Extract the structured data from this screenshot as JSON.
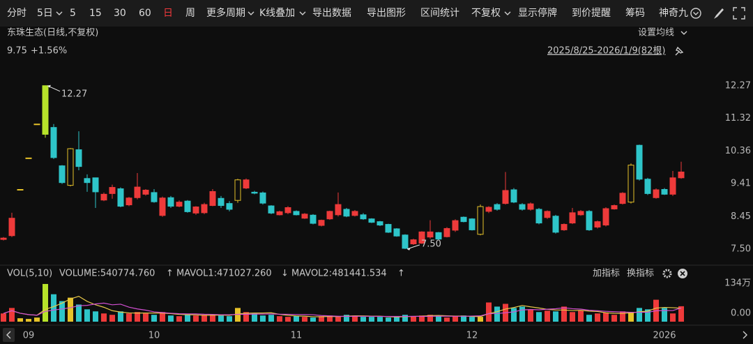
{
  "toolbar": {
    "items": [
      "分时",
      "5日",
      "5",
      "15",
      "30",
      "60",
      "日",
      "周",
      "更多周期",
      "K线叠加",
      "导出数据",
      "导出图形",
      "区间统计",
      "不复权",
      "显示停牌",
      "到价提醒",
      "筹码",
      "神奇九"
    ]
  },
  "header": {
    "title": "东珠生态(日线,不复权)",
    "ma_setting": "设置均线",
    "price": "9.75",
    "change": "+1.56%",
    "range": "2025/8/25-2026/1/9(82根)"
  },
  "chart_data": {
    "type": "candlestick",
    "categories": [
      null,
      null,
      null,
      "09",
      null,
      null,
      null,
      null,
      null,
      null,
      null,
      null,
      null,
      null,
      null,
      null,
      null,
      null,
      "10",
      null,
      null,
      null,
      null,
      null,
      null,
      null,
      null,
      null,
      null,
      null,
      null,
      null,
      null,
      null,
      null,
      "11",
      null,
      null,
      null,
      null,
      null,
      null,
      null,
      null,
      null,
      null,
      null,
      null,
      null,
      null,
      null,
      null,
      null,
      null,
      null,
      null,
      "12",
      null,
      null,
      null,
      null,
      null,
      null,
      null,
      null,
      null,
      null,
      null,
      null,
      null,
      null,
      null,
      null,
      null,
      null,
      null,
      null,
      null,
      null,
      "2026",
      null,
      null
    ],
    "open": [
      7.78,
      7.89,
      9.24,
      10.16,
      11.15,
      12.27,
      11.05,
      9.93,
      9.36,
      10.4,
      9.56,
      9.58,
      8.93,
      9.12,
      9.26,
      8.79,
      9.0,
      9.1,
      9.15,
      8.48,
      9.0,
      8.75,
      8.9,
      8.55,
      8.56,
      8.77,
      8.98,
      8.83,
      8.92,
      9.28,
      9.16,
      9.14,
      8.76,
      8.5,
      8.56,
      8.6,
      8.4,
      8.49,
      8.19,
      8.38,
      8.5,
      8.66,
      8.48,
      8.5,
      8.38,
      8.3,
      8.22,
      8.09,
      7.91,
      7.65,
      7.67,
      7.85,
      7.98,
      7.86,
      8.05,
      8.43,
      8.38,
      7.93,
      8.6,
      8.8,
      8.83,
      9.23,
      8.8,
      8.66,
      8.66,
      8.42,
      8.46,
      8.06,
      8.26,
      8.5,
      8.6,
      8.14,
      8.2,
      8.67,
      8.83,
      8.87,
      10.53,
      9.54,
      9.0,
      9.24,
      9.1,
      9.58
    ],
    "high": [
      7.85,
      8.56,
      9.24,
      10.16,
      11.15,
      12.27,
      11.15,
      9.95,
      10.45,
      10.94,
      9.68,
      9.58,
      9.15,
      9.38,
      9.3,
      9.02,
      9.72,
      9.25,
      9.25,
      9.03,
      9.05,
      8.92,
      8.93,
      8.75,
      8.85,
      9.25,
      9.05,
      8.9,
      9.55,
      9.56,
      9.2,
      9.18,
      8.78,
      8.62,
      8.75,
      8.63,
      8.55,
      8.52,
      8.36,
      8.62,
      9.15,
      8.7,
      8.64,
      8.55,
      8.4,
      8.32,
      8.24,
      8.11,
      7.93,
      7.8,
      8.02,
      8.34,
      8.0,
      8.14,
      8.37,
      8.45,
      8.4,
      8.8,
      8.75,
      8.84,
      9.75,
      9.28,
      8.84,
      8.86,
      8.7,
      8.63,
      8.5,
      8.25,
      8.7,
      8.64,
      8.64,
      8.33,
      8.72,
      8.8,
      9.16,
      10.0,
      10.55,
      9.58,
      9.27,
      9.28,
      9.78,
      10.05
    ],
    "low": [
      7.75,
      7.85,
      9.24,
      10.16,
      11.15,
      10.75,
      10.13,
      9.4,
      9.33,
      9.8,
      9.17,
      8.7,
      8.9,
      8.97,
      8.72,
      8.75,
      8.95,
      9.06,
      8.85,
      8.44,
      8.7,
      8.72,
      8.56,
      8.5,
      8.52,
      8.75,
      8.7,
      8.6,
      8.85,
      9.25,
      9.1,
      8.8,
      8.52,
      8.48,
      8.52,
      8.48,
      8.38,
      8.22,
      8.16,
      8.35,
      8.45,
      8.43,
      8.45,
      8.35,
      8.26,
      8.17,
      7.97,
      7.86,
      7.5,
      7.62,
      7.65,
      7.8,
      7.77,
      7.84,
      8.0,
      8.28,
      8.04,
      7.9,
      8.55,
      8.62,
      8.8,
      8.84,
      8.62,
      8.62,
      8.22,
      8.38,
      7.95,
      8.03,
      8.23,
      8.47,
      8.03,
      8.1,
      8.16,
      8.65,
      8.8,
      8.83,
      9.5,
      9.08,
      8.97,
      9.08,
      9.05,
      9.55
    ],
    "close": [
      7.82,
      8.4,
      9.24,
      10.16,
      11.15,
      10.85,
      10.17,
      9.44,
      10.43,
      9.91,
      9.44,
      9.17,
      9.1,
      9.3,
      8.75,
      8.99,
      9.31,
      9.22,
      8.88,
      8.99,
      8.75,
      8.87,
      8.59,
      8.73,
      8.8,
      9.18,
      8.77,
      8.66,
      9.52,
      9.52,
      9.13,
      8.84,
      8.55,
      8.59,
      8.71,
      8.5,
      8.52,
      8.25,
      8.34,
      8.6,
      8.8,
      8.46,
      8.6,
      8.38,
      8.28,
      8.2,
      7.99,
      7.88,
      7.52,
      7.77,
      8.0,
      8.0,
      7.79,
      8.1,
      8.33,
      8.3,
      8.06,
      8.74,
      8.72,
      8.66,
      9.21,
      8.87,
      8.66,
      8.82,
      8.26,
      8.6,
      7.99,
      8.22,
      8.56,
      8.6,
      8.06,
      8.3,
      8.68,
      8.77,
      9.13,
      9.95,
      9.54,
      9.12,
      9.23,
      9.1,
      9.58,
      9.75
    ],
    "colors": [
      "#ee3a3a",
      "#ee3a3a",
      "#e6c229",
      "#e6c229",
      "#e6c229",
      "#b7e32a",
      "#2ec5c9",
      "#2ec5c9",
      "#e6c229",
      "#2ec5c9",
      "#2ec5c9",
      "#2ec5c9",
      "#ee3a3a",
      "#ee3a3a",
      "#2ec5c9",
      "#ee3a3a",
      "#ee3a3a",
      "#ee3a3a",
      "#2ec5c9",
      "#ee3a3a",
      "#2ec5c9",
      "#ee3a3a",
      "#2ec5c9",
      "#ee3a3a",
      "#ee3a3a",
      "#ee3a3a",
      "#2ec5c9",
      "#2ec5c9",
      "#e6c229",
      "#ee3a3a",
      "#2ec5c9",
      "#2ec5c9",
      "#2ec5c9",
      "#ee3a3a",
      "#ee3a3a",
      "#2ec5c9",
      "#ee3a3a",
      "#2ec5c9",
      "#ee3a3a",
      "#ee3a3a",
      "#ee3a3a",
      "#2ec5c9",
      "#ee3a3a",
      "#2ec5c9",
      "#2ec5c9",
      "#2ec5c9",
      "#2ec5c9",
      "#2ec5c9",
      "#2ec5c9",
      "#ee3a3a",
      "#ee3a3a",
      "#ee3a3a",
      "#2ec5c9",
      "#ee3a3a",
      "#ee3a3a",
      "#2ec5c9",
      "#2ec5c9",
      "#e6c229",
      "#ee3a3a",
      "#2ec5c9",
      "#ee3a3a",
      "#2ec5c9",
      "#2ec5c9",
      "#ee3a3a",
      "#2ec5c9",
      "#ee3a3a",
      "#2ec5c9",
      "#ee3a3a",
      "#ee3a3a",
      "#ee3a3a",
      "#2ec5c9",
      "#ee3a3a",
      "#ee3a3a",
      "#ee3a3a",
      "#ee3a3a",
      "#e6c229",
      "#2ec5c9",
      "#2ec5c9",
      "#ee3a3a",
      "#2ec5c9",
      "#ee3a3a",
      "#ee3a3a"
    ],
    "hollow_color": "#e6c229",
    "ylim": [
      7.07,
      12.49
    ],
    "yticks": [
      12.27,
      11.32,
      10.36,
      9.41,
      8.45,
      {
        "value": 7.5,
        "label": "7.50"
      }
    ],
    "annotations": [
      {
        "value": 12.27,
        "label": "12.27"
      },
      {
        "value": 7.5,
        "label": "7.50"
      }
    ],
    "volume": {
      "legend": {
        "name": "VOL(5,10)",
        "volume": "VOLUME:540774.760",
        "arrow1": "↑",
        "mavol1": "MAVOL1:471027.260",
        "arrow2": "↓",
        "mavol2": "MAVOL2:481441.534",
        "arrow3": "↑",
        "add": "加指标",
        "switch": "换指标"
      },
      "values": [
        288000,
        480000,
        120000,
        96000,
        144000,
        1320000,
        960000,
        720000,
        840000,
        600000,
        432000,
        360000,
        288000,
        240000,
        360000,
        288000,
        336000,
        288000,
        240000,
        336000,
        216000,
        192000,
        240000,
        216000,
        240000,
        240000,
        216000,
        192000,
        480000,
        336000,
        288000,
        216000,
        240000,
        192000,
        168000,
        192000,
        168000,
        144000,
        192000,
        216000,
        168000,
        240000,
        216000,
        168000,
        168000,
        168000,
        144000,
        168000,
        240000,
        192000,
        216000,
        240000,
        192000,
        144000,
        192000,
        216000,
        168000,
        168000,
        672000,
        528000,
        624000,
        480000,
        528000,
        432000,
        336000,
        384000,
        360000,
        528000,
        336000,
        384000,
        240000,
        288000,
        312000,
        240000,
        360000,
        336000,
        480000,
        432000,
        768000,
        480000,
        288000,
        540774.76
      ],
      "ma5": [
        288000,
        384000,
        295200,
        247200,
        225600,
        432000,
        528000,
        648000,
        796800,
        888000,
        710400,
        590400,
        504000,
        384000,
        336000,
        307200,
        302400,
        302400,
        302400,
        297600,
        283200,
        254400,
        244800,
        240000,
        220800,
        225600,
        230400,
        220800,
        273600,
        292800,
        302400,
        302400,
        312000,
        254400,
        220800,
        201600,
        192000,
        172800,
        172800,
        182400,
        177600,
        192000,
        206400,
        201600,
        192000,
        192000,
        172800,
        163200,
        177600,
        182400,
        192000,
        211200,
        216000,
        206400,
        196800,
        196800,
        182400,
        177600,
        283200,
        350400,
        441600,
        494400,
        566400,
        518400,
        480000,
        432000,
        408000,
        408000,
        388800,
        398400,
        369600,
        355200,
        312000,
        292800,
        288000,
        307200,
        345600,
        369600,
        475200,
        499200,
        489600,
        471027.26
      ],
      "ma10": [
        288000,
        384000,
        295200,
        247200,
        225600,
        360000,
        408000,
        444000,
        489600,
        556800,
        571200,
        619200,
        650400,
        590400,
        612000,
        508800,
        446400,
        403200,
        343200,
        316800,
        295200,
        278400,
        273600,
        271200,
        259200,
        254400,
        242400,
        242400,
        256800,
        256800,
        266400,
        266400,
        271200,
        261600,
        256800,
        252000,
        247200,
        242400,
        213600,
        201600,
        189600,
        182400,
        189600,
        187200,
        187200,
        184800,
        182400,
        182400,
        184800,
        187200,
        182400,
        187200,
        192000,
        192000,
        187200,
        187200,
        196800,
        204000,
        280800,
        285600,
        312000,
        343200,
        412800,
        424800,
        415200,
        436800,
        451200,
        487200,
        453600,
        439200,
        400800,
        381600,
        362400,
        348000,
        338400,
        328800,
        328800,
        328800,
        381600,
        391200,
        388800,
        481441.534
      ],
      "ma5_color": "#e8c84a",
      "ma10_color": "#d24fd2",
      "ylim": [
        0,
        1490000
      ],
      "yticks": [
        {
          "value": 1340000,
          "label": "134万"
        },
        {
          "value": 0,
          "label": "0.00"
        }
      ]
    }
  }
}
